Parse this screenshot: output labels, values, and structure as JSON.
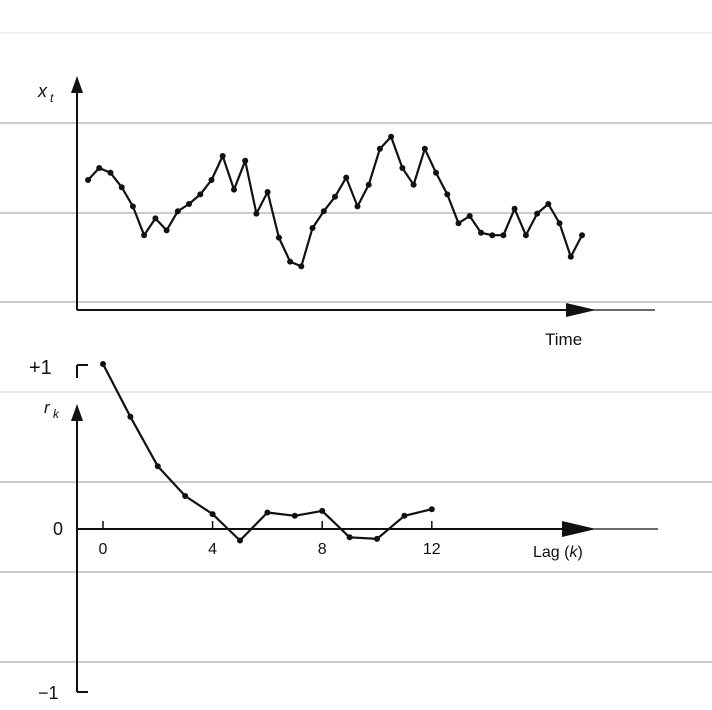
{
  "chart_data": [
    {
      "type": "line",
      "title": "",
      "ylabel_main": "x",
      "ylabel_sub": "t",
      "xlabel": "Time",
      "series": [
        {
          "values": [
            0.5,
            0.55,
            0.53,
            0.47,
            0.39,
            0.27,
            0.34,
            0.29,
            0.37,
            0.4,
            0.44,
            0.5,
            0.6,
            0.46,
            0.58,
            0.36,
            0.45,
            0.26,
            0.16,
            0.14,
            0.3,
            0.37,
            0.43,
            0.51,
            0.39,
            0.48,
            0.63,
            0.68,
            0.55,
            0.48,
            0.63,
            0.53,
            0.44,
            0.32,
            0.35,
            0.28,
            0.27,
            0.27,
            0.38,
            0.27,
            0.36,
            0.4,
            0.32,
            0.18,
            0.27
          ]
        }
      ]
    },
    {
      "type": "line",
      "title": "",
      "ylabel_main": "r",
      "ylabel_sub": "k",
      "xlabel_main": "Lag (",
      "xlabel_var": "k",
      "xlabel_end": ")",
      "x_ticks": [
        "0",
        "4",
        "8",
        "12"
      ],
      "y_ticks": [
        "+1",
        "0",
        "−1"
      ],
      "x": [
        0,
        1,
        2,
        3,
        4,
        5,
        6,
        7,
        8,
        9,
        10,
        11,
        12
      ],
      "values": [
        1.0,
        0.68,
        0.38,
        0.2,
        0.09,
        -0.07,
        0.1,
        0.08,
        0.11,
        -0.05,
        -0.06,
        0.08,
        0.12
      ],
      "xlim": [
        0,
        20
      ],
      "ylim": [
        -1,
        1
      ]
    }
  ]
}
